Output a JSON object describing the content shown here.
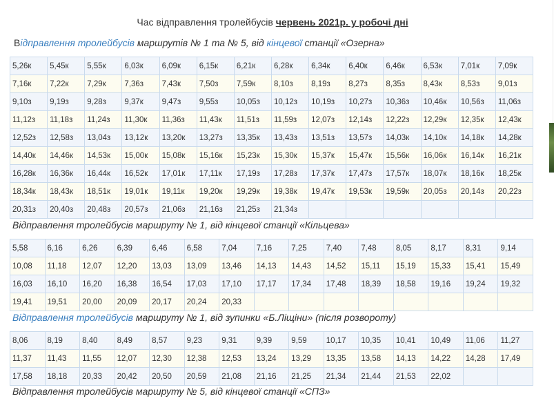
{
  "title": {
    "prefix": "Час  відправлення  тролейбусів ",
    "period": " червень 2021р. у робочі дні"
  },
  "sections": [
    {
      "heading": {
        "parts": [
          {
            "text": "В",
            "style": "plain-first"
          },
          {
            "text": "ідправлення тролейбусів",
            "style": "link"
          },
          {
            "text": " маршрутів № 1 та № 5, від ",
            "style": "plain"
          },
          {
            "text": "кінцевої",
            "style": "link"
          },
          {
            "text": " станції «Озерна»",
            "style": "plain"
          }
        ]
      },
      "columns": 14,
      "rows": [
        [
          "5,26к",
          "5,45к",
          "5,55к",
          "6,03к",
          "6,09к",
          "6,15к",
          "6,21к",
          "6,28к",
          "6,34к",
          "6,40к",
          "6,46к",
          "6,53к",
          "7,01к",
          "7,09к"
        ],
        [
          "7,16к",
          "7,22к",
          "7,29к",
          "7,36з",
          "7,43к",
          "7,50з",
          "7,59к",
          "8,10з",
          "8,19з",
          "8,27з",
          "8,35з",
          "8,43к",
          "8,53з",
          "9,01з"
        ],
        [
          "9,10з",
          "9,19з",
          "9,28з",
          "9,37к",
          "9,47з",
          "9,55з",
          "10,05з",
          "10,12з",
          "10,19з",
          "10,27з",
          "10,36з",
          "10,46к",
          "10,56з",
          "11,06з"
        ],
        [
          "11,12з",
          "11,18з",
          "11,24з",
          "11,30к",
          "11,36з",
          "11,43к",
          "11,51з",
          "11,59з",
          "12,07з",
          "12,14з",
          "12,22з",
          "12,29к",
          "12,35к",
          "12,43к"
        ],
        [
          "12,52з",
          "12,58з",
          "13,04з",
          "13,12к",
          "13,20к",
          "13,27з",
          "13,35к",
          "13,43з",
          "13,51з",
          "13,57з",
          "14,03к",
          "14,10к",
          "14,18к",
          "14,28к"
        ],
        [
          "14,40к",
          "14,46к",
          "14,53к",
          "15,00к",
          "15,08к",
          "15,16к",
          "15,23к",
          "15,30к",
          "15,37к",
          "15,47к",
          "15,56к",
          "16,06к",
          "16,14к",
          "16,21к"
        ],
        [
          "16,28к",
          "16,36к",
          "16,44к",
          "16,52к",
          "17,01к",
          "17,11к",
          "17,19з",
          "17,28з",
          "17,37к",
          "17,47з",
          "17,57к",
          "18,07к",
          "18,16к",
          "18,25к"
        ],
        [
          "18,34к",
          "18,43к",
          "18,51к",
          "19,01к",
          "19,11к",
          "19,20к",
          "19,29к",
          "19,38к",
          "19,47к",
          "19,53к",
          "19,59к",
          "20,05з",
          "20,14з",
          "20,22з"
        ],
        [
          "20,31з",
          "20,40з",
          "20,48з",
          "20,57з",
          "21,06з",
          "21,16з",
          "21,25з",
          "21,34з",
          "",
          "",
          "",
          "",
          "",
          ""
        ]
      ]
    },
    {
      "heading": {
        "parts": [
          {
            "text": "Відправлення тролейбусів маршруту № 1, від кінцевої станції «Кільцева»",
            "style": "plain"
          }
        ]
      },
      "columns": 15,
      "rows": [
        [
          "5,58",
          "6,16",
          "6,26",
          "6,39",
          "6,46",
          "6,58",
          "7,04",
          "7,16",
          "7,25",
          "7,40",
          "7,48",
          "8,05",
          "8,17",
          "8,31",
          "9,14"
        ],
        [
          "10,08",
          "11,18",
          "12,07",
          "12,20",
          "13,03",
          "13,09",
          "13,46",
          "14,13",
          "14,43",
          "14,52",
          "15,11",
          "15,19",
          "15,33",
          "15,41",
          "15,49"
        ],
        [
          "16,03",
          "16,10",
          "16,20",
          "16,38",
          "16,54",
          "17,03",
          "17,10",
          "17,17",
          "17,34",
          "17,48",
          "18,39",
          "18,58",
          "19,16",
          "19,24",
          "19,32"
        ],
        [
          "19,41",
          "19,51",
          "20,00",
          "20,09",
          "20,17",
          "20,24",
          "20,33",
          "",
          "",
          "",
          "",
          "",
          "",
          "",
          ""
        ]
      ]
    },
    {
      "heading": {
        "parts": [
          {
            "text": "Відправлення тролейбусів",
            "style": "link"
          },
          {
            "text": " маршруту № 1, від зупинки «Б.Ліщіни» (після розвороту)",
            "style": "plain"
          }
        ]
      },
      "columns": 15,
      "rows": [
        [
          "8,06",
          "8,19",
          "8,40",
          "8,49",
          "8,57",
          "9,23",
          "9,31",
          "9,39",
          "9,59",
          "10,17",
          "10,35",
          "10,41",
          "10,49",
          "11,06",
          "11,27"
        ],
        [
          "11,37",
          "11,43",
          "11,55",
          "12,07",
          "12,30",
          "12,38",
          "12,53",
          "13,24",
          "13,29",
          "13,35",
          "13,58",
          "14,13",
          "14,22",
          "14,28",
          "17,49"
        ],
        [
          "17,58",
          "18,18",
          "20,33",
          "20,42",
          "20,50",
          "20,59",
          "21,08",
          "21,16",
          "21,25",
          "21,34",
          "21,44",
          "21,53",
          "22,02",
          "",
          ""
        ]
      ]
    },
    {
      "heading": {
        "parts": [
          {
            "text": "Відправлення тролейбусів маршруту № 5, від кінцевої станції «СПЗ»",
            "style": "plain"
          }
        ]
      },
      "columns": 15,
      "rows": []
    }
  ]
}
